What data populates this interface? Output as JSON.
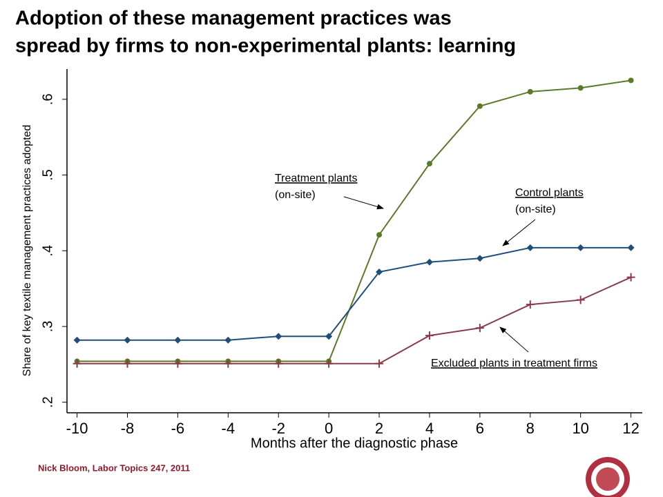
{
  "chart_data": {
    "type": "line",
    "title": [
      "Adoption of these management practices was",
      "spread by firms to non-experimental plants: learning"
    ],
    "footer": "Nick Bloom, Labor Topics 247, 2011",
    "xlabel": "Months after the diagnostic phase",
    "ylabel": "Share of key textile management practices adopted",
    "x": [
      -10,
      -8,
      -6,
      -4,
      -2,
      0,
      2,
      4,
      6,
      8,
      10,
      12
    ],
    "xlim": [
      -10.4,
      12.45
    ],
    "xticks": [
      -10,
      -8,
      -6,
      -4,
      -2,
      0,
      2,
      4,
      6,
      8,
      10,
      12
    ],
    "ylim": [
      0.186,
      0.64
    ],
    "yticks": [
      {
        "value": 0.2,
        "label": ".2"
      },
      {
        "value": 0.3,
        "label": ".3"
      },
      {
        "value": 0.4,
        "label": ".4"
      },
      {
        "value": 0.5,
        "label": ".5"
      },
      {
        "value": 0.6,
        "label": ".6"
      }
    ],
    "series": [
      {
        "name": "Treatment plants",
        "sublabel": "(on-site)",
        "color": "#5a7a2a",
        "marker": "circle",
        "values": [
          0.254,
          0.254,
          0.254,
          0.254,
          0.254,
          0.254,
          0.421,
          0.515,
          0.591,
          0.61,
          0.615,
          0.625
        ]
      },
      {
        "name": "Control plants",
        "sublabel": "(on-site)",
        "color": "#1f4e79",
        "marker": "diamond",
        "values": [
          0.282,
          0.282,
          0.282,
          0.282,
          0.287,
          0.287,
          0.372,
          0.385,
          0.39,
          0.404,
          0.404,
          0.404
        ]
      },
      {
        "name": "Excluded plants in treatment firms",
        "color": "#8b3a4a",
        "marker": "plus",
        "values": [
          0.251,
          0.251,
          0.251,
          0.251,
          0.251,
          0.251,
          0.251,
          0.288,
          0.298,
          0.329,
          0.335,
          0.365
        ]
      }
    ]
  }
}
